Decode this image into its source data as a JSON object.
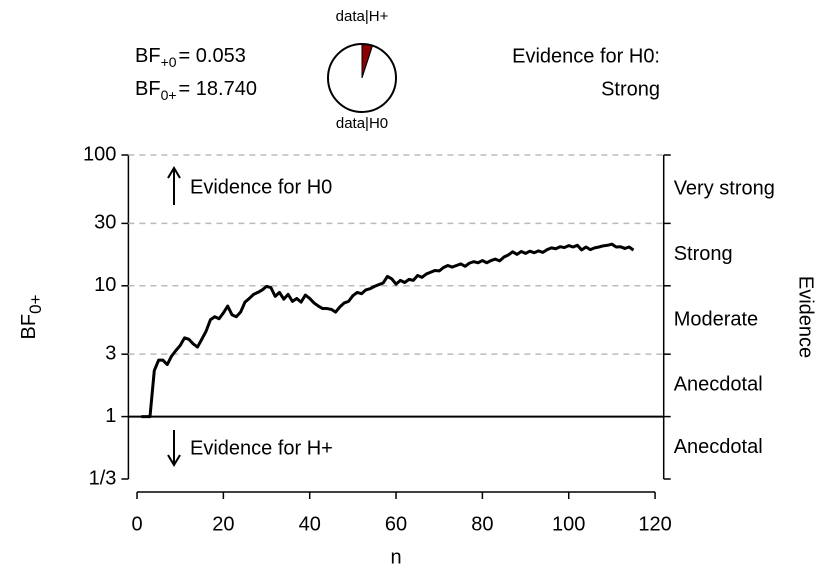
{
  "chart_data": {
    "type": "line",
    "bf_labels": [
      {
        "base": "BF",
        "sub": "+0",
        "text": "= 0.053"
      },
      {
        "base": "BF",
        "sub": "0+",
        "text": "= 18.740"
      }
    ],
    "pie": {
      "labels": [
        "data|H+",
        "data|H0"
      ],
      "values": [
        0.05,
        0.95
      ],
      "colors": [
        "#8b0000",
        "#ffffff"
      ]
    },
    "evidence_title": "Evidence for H0:",
    "evidence_level": "Strong",
    "arrow_up_text": "Evidence for H0",
    "arrow_down_text": "Evidence for H+",
    "xlabel": "n",
    "ylabel": {
      "base": "BF",
      "sub": "0+"
    },
    "y2label": "Evidence",
    "evidence_categories": [
      "Very strong",
      "Strong",
      "Moderate",
      "Anecdotal",
      "Anecdotal"
    ],
    "log_y": true,
    "xlim": [
      -2,
      122
    ],
    "xticks": [
      0,
      20,
      40,
      60,
      80,
      100,
      120
    ],
    "ylim": [
      0.3333,
      100
    ],
    "yticks": [
      {
        "value": 0.3333,
        "label": "1/3"
      },
      1,
      3,
      10,
      30,
      100
    ],
    "grid": true,
    "series": [
      {
        "color": "#000000",
        "x": [
          1,
          2,
          3,
          4,
          5,
          6,
          7,
          8,
          9,
          10,
          11,
          12,
          13,
          14,
          15,
          16,
          17,
          18,
          19,
          20,
          21,
          22,
          23,
          24,
          25,
          26,
          27,
          28,
          29,
          30,
          31,
          32,
          33,
          34,
          35,
          36,
          37,
          38,
          39,
          40,
          41,
          42,
          43,
          44,
          45,
          46,
          47,
          48,
          49,
          50,
          51,
          52,
          53,
          54,
          55,
          56,
          57,
          58,
          59,
          60,
          61,
          62,
          63,
          64,
          65,
          66,
          67,
          68,
          69,
          70,
          71,
          72,
          73,
          74,
          75,
          76,
          77,
          78,
          79,
          80,
          81,
          82,
          83,
          84,
          85,
          86,
          87,
          88,
          89,
          90,
          91,
          92,
          93,
          94,
          95,
          96,
          97,
          98,
          99,
          100,
          101,
          102,
          103,
          104,
          105,
          106,
          107,
          108,
          109,
          110,
          111,
          112,
          113,
          114,
          115
        ],
        "values": [
          1,
          1,
          1,
          2.25,
          2.7,
          2.7,
          2.5,
          2.9,
          3.2,
          3.5,
          4.0,
          3.9,
          3.6,
          3.4,
          3.9,
          4.5,
          5.5,
          5.8,
          5.6,
          6.2,
          7.0,
          6.0,
          5.8,
          6.3,
          7.5,
          8.0,
          8.6,
          8.9,
          9.3,
          9.9,
          9.7,
          8.3,
          8.9,
          7.9,
          8.6,
          7.6,
          8.0,
          7.5,
          8.5,
          8.0,
          7.4,
          7.0,
          6.7,
          6.7,
          6.6,
          6.3,
          6.9,
          7.4,
          7.6,
          8.4,
          8.9,
          8.7,
          9.3,
          9.5,
          9.9,
          10.2,
          10.5,
          11.8,
          11.3,
          10.3,
          11.0,
          10.6,
          11.2,
          11.0,
          12.0,
          11.6,
          12.3,
          12.7,
          13.1,
          13.0,
          13.8,
          14.3,
          13.9,
          14.3,
          14.7,
          14.1,
          14.9,
          15.3,
          15.0,
          15.6,
          15.0,
          15.6,
          16.0,
          15.5,
          16.6,
          17.2,
          18.2,
          17.4,
          18.3,
          17.7,
          18.4,
          17.9,
          18.5,
          18.0,
          18.9,
          19.5,
          19.2,
          19.9,
          19.6,
          20.3,
          19.8,
          20.4,
          18.8,
          19.8,
          18.9,
          19.5,
          19.8,
          20.2,
          20.4,
          20.8,
          19.8,
          19.9,
          19.3,
          19.8,
          18.74
        ]
      }
    ]
  }
}
